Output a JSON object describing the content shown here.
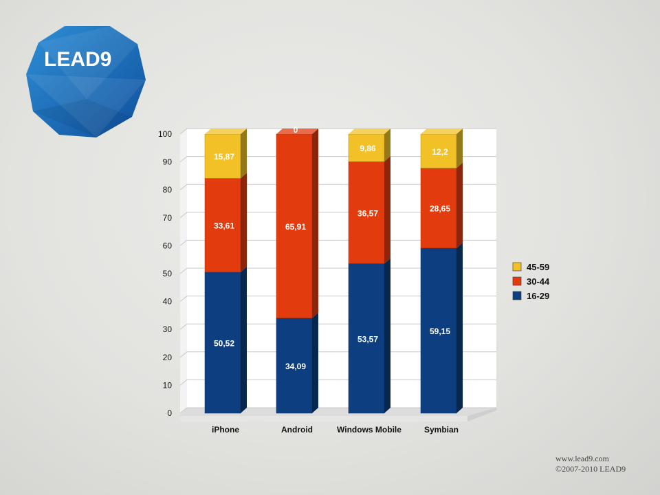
{
  "logo": {
    "text": "LEAD9"
  },
  "footer": {
    "url": "www.lead9.com",
    "copyright": "©2007-2010 LEAD9"
  },
  "colors": {
    "16-29": "#0d3f80",
    "30-44": "#e23c0e",
    "45-59": "#f1c127"
  },
  "chart_data": {
    "type": "bar",
    "stacked": true,
    "three_d": true,
    "categories": [
      "iPhone",
      "Android",
      "Windows Mobile",
      "Symbian"
    ],
    "series": [
      {
        "name": "16-29",
        "values": [
          50.52,
          34.09,
          53.57,
          59.15
        ],
        "labels": [
          "50,52",
          "34,09",
          "53,57",
          "59,15"
        ]
      },
      {
        "name": "30-44",
        "values": [
          33.61,
          65.91,
          36.57,
          28.65
        ],
        "labels": [
          "33,61",
          "65,91",
          "36,57",
          "28,65"
        ]
      },
      {
        "name": "45-59",
        "values": [
          15.87,
          0,
          9.86,
          12.2
        ],
        "labels": [
          "15,87",
          "0",
          "9,86",
          "12,2"
        ]
      }
    ],
    "legend_order": [
      "45-59",
      "30-44",
      "16-29"
    ],
    "legend_position": "right",
    "ylim": [
      0,
      100
    ],
    "yticks": [
      "0",
      "10",
      "20",
      "30",
      "40",
      "50",
      "60",
      "70",
      "80",
      "90",
      "100"
    ],
    "grid": true
  }
}
